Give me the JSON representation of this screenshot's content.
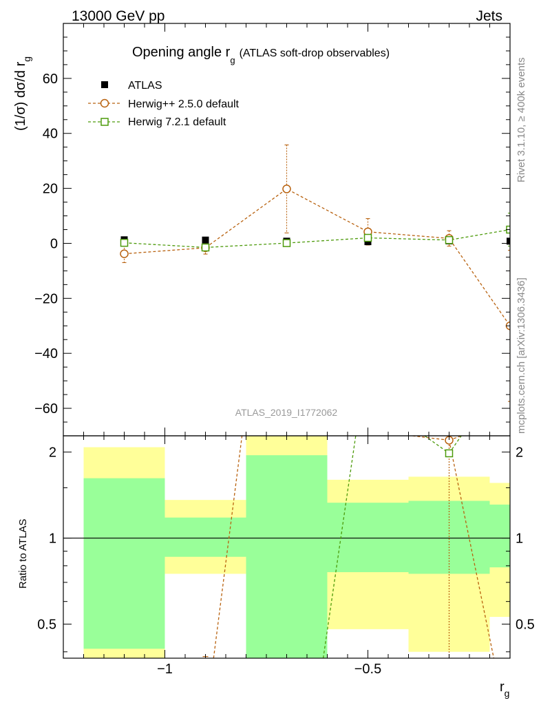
{
  "header": {
    "left": "13000 GeV pp",
    "right": "Jets"
  },
  "side_labels": {
    "rivet": "Rivet 3.1.10, ≥ 400k events",
    "mcplots": "mcplots.cern.ch [arXiv:1306.3436]"
  },
  "watermark": "ATLAS_2019_I1772062",
  "chart_data": {
    "type": "line",
    "title": "Opening angle r",
    "title_sub": "g",
    "title_note": "(ATLAS soft-drop observables)",
    "xlabel": "r",
    "xlabel_sub": "g",
    "ylabel": "(1/σ) dσ/d r",
    "ylabel_sub": "g",
    "xlim": [
      -1.25,
      -0.15
    ],
    "ylim": [
      -70,
      80
    ],
    "x_ticks": [
      -1,
      -0.5
    ],
    "x_tick_labels": [
      "−1",
      "−0.5"
    ],
    "y_ticks": [
      -60,
      -40,
      -20,
      0,
      20,
      40,
      60
    ],
    "y_tick_labels": [
      "−60",
      "−40",
      "−20",
      "0",
      "20",
      "40",
      "60"
    ],
    "bins": [
      -1.2,
      -1.0,
      -0.8,
      -0.6,
      -0.4,
      -0.2,
      -0.1
    ],
    "x": [
      -1.1,
      -0.9,
      -0.7,
      -0.5,
      -0.3,
      -0.15
    ],
    "legend": [
      "ATLAS",
      "Herwig++ 2.5.0 default",
      "Herwig 7.2.1 default"
    ],
    "series": [
      {
        "name": "ATLAS",
        "color": "#000000",
        "x": [
          -1.1,
          -0.9,
          -0.7,
          -0.5,
          -0.3,
          -0.15
        ],
        "values": [
          1.3,
          1.2,
          0.8,
          0.6,
          0.9,
          0.8
        ],
        "errors": [
          0.3,
          0.3,
          0.3,
          0.3,
          0.3,
          0.3
        ]
      },
      {
        "name": "Herwig++ 2.5.0 default",
        "color": "#b8610e",
        "x": [
          -1.1,
          -0.9,
          -0.7,
          -0.5,
          -0.3,
          -0.15
        ],
        "values": [
          -3.8,
          -1.6,
          19.8,
          4.2,
          1.8,
          -30.0
        ],
        "errors": [
          3.2,
          2.3,
          16.0,
          4.8,
          2.8,
          27.5
        ]
      },
      {
        "name": "Herwig 7.2.1 default",
        "color": "#4c9a0a",
        "x": [
          -1.1,
          -0.9,
          -0.7,
          -0.5,
          -0.3,
          -0.15
        ],
        "values": [
          0.2,
          -1.5,
          0.1,
          2.0,
          1.2,
          5.0
        ],
        "errors": [
          0.6,
          0.6,
          0.6,
          0.8,
          1.0,
          6.0
        ]
      }
    ],
    "ratio": {
      "ylabel": "Ratio to ATLAS",
      "ylim": [
        0.38,
        2.28
      ],
      "y_ticks": [
        0.5,
        1,
        2
      ],
      "y_tick_labels": [
        "0.5",
        "1",
        "2"
      ],
      "band_inner_lo": [
        0.41,
        0.86,
        0.37,
        0.76,
        0.75,
        0.79
      ],
      "band_inner_hi": [
        1.62,
        1.18,
        1.95,
        1.33,
        1.35,
        1.31
      ],
      "band_outer_lo": [
        0.38,
        0.75,
        0.37,
        0.48,
        0.4,
        0.53
      ],
      "band_outer_hi": [
        2.08,
        1.36,
        2.28,
        1.6,
        1.64,
        1.56
      ],
      "herwigpp_marker": {
        "x": -0.3,
        "value": 2.2
      },
      "herwig7_marker": {
        "x": -0.3,
        "value": 1.98
      },
      "herwigpp_lines": [
        [
          [
            -0.88,
            0.38
          ],
          [
            -0.81,
            2.28
          ]
        ],
        [
          [
            -0.39,
            2.28
          ],
          [
            -0.3,
            2.2
          ]
        ],
        [
          [
            -0.3,
            2.2
          ],
          [
            -0.27,
            2.28
          ]
        ],
        [
          [
            -0.3,
            2.2
          ],
          [
            -0.19,
            0.38
          ]
        ]
      ],
      "herwig7_lines": [
        [
          [
            -0.61,
            0.38
          ],
          [
            -0.53,
            2.28
          ]
        ],
        [
          [
            -0.36,
            2.28
          ],
          [
            -0.3,
            1.98
          ]
        ],
        [
          [
            -0.3,
            1.98
          ],
          [
            -0.27,
            2.28
          ]
        ]
      ],
      "herwigpp_bar_low": [
        -0.9,
        0.37
      ]
    }
  },
  "colors": {
    "band_inner": "#99ff99",
    "band_outer": "#ffff99"
  }
}
